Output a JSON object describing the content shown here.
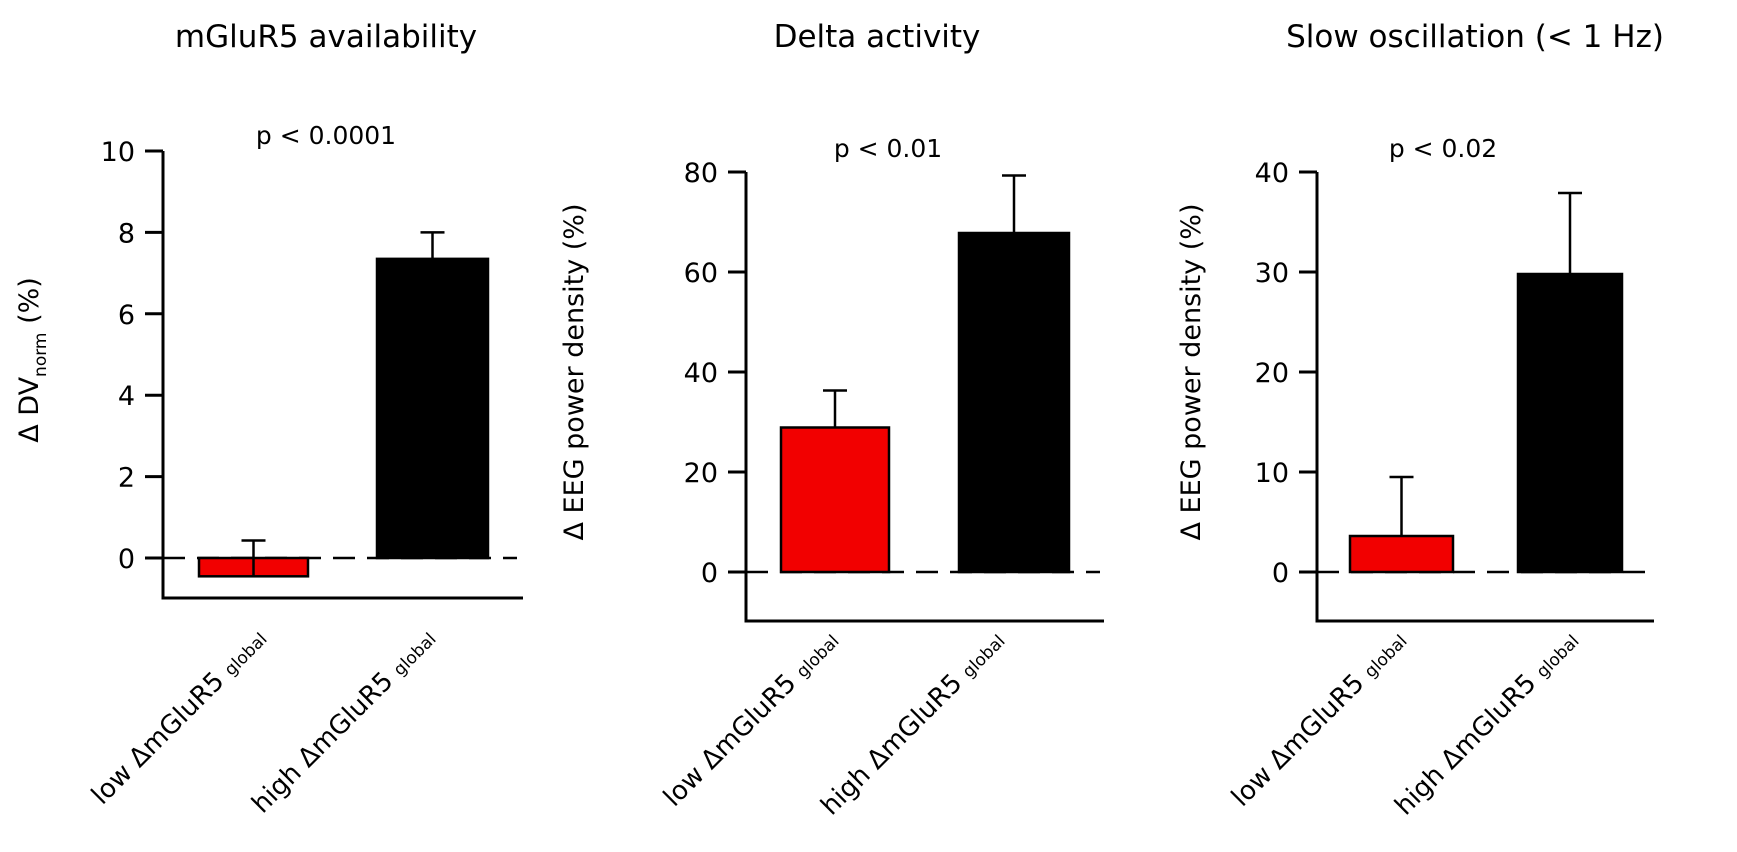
{
  "figure": {
    "colors": {
      "low": "#f20000",
      "high": "#000000",
      "axis": "#000000",
      "zero_line": "#000000"
    }
  },
  "chart_data": [
    {
      "type": "bar",
      "title": "mGluR5 availability",
      "annotation": "p < 0.0001",
      "ylabel": "Δ DV",
      "ylabel_subscript": "norm",
      "ylabel_suffix": " (%)",
      "categories": [
        {
          "prefix": "low ΔmGluR5",
          "subscript": "global"
        },
        {
          "prefix": "high ΔmGluR5",
          "subscript": "global"
        }
      ],
      "values": [
        -0.45,
        7.35
      ],
      "error_upper": [
        0.43,
        8.0
      ],
      "error_direction": [
        "up-through-bar",
        "up"
      ],
      "ylim": [
        -1,
        10
      ],
      "yticks": [
        0,
        2,
        4,
        6,
        8,
        10
      ],
      "ytick_labels": [
        "0",
        "2",
        "4",
        "6",
        "8",
        "10"
      ],
      "zero_line": "dashed",
      "grid": false
    },
    {
      "type": "bar",
      "title": "Delta activity",
      "annotation": "p < 0.01",
      "ylabel": "Δ EEG power density (%)",
      "ylabel_subscript": "",
      "ylabel_suffix": "",
      "categories": [
        {
          "prefix": "low ΔmGluR5",
          "subscript": "global"
        },
        {
          "prefix": "high ΔmGluR5",
          "subscript": "global"
        }
      ],
      "values": [
        28.9,
        67.8
      ],
      "error_upper": [
        36.3,
        79.3
      ],
      "error_direction": [
        "up",
        "up"
      ],
      "ylim": [
        -10,
        80
      ],
      "yticks": [
        0,
        20,
        40,
        60,
        80
      ],
      "ytick_labels": [
        "0",
        "20",
        "40",
        "60",
        "80"
      ],
      "zero_line": "dashed",
      "grid": false
    },
    {
      "type": "bar",
      "title": "Slow oscillation (< 1 Hz)",
      "annotation": "p < 0.02",
      "ylabel": "Δ EEG power density (%)",
      "ylabel_subscript": "",
      "ylabel_suffix": "",
      "categories": [
        {
          "prefix": "low ΔmGluR5",
          "subscript": "global"
        },
        {
          "prefix": "high ΔmGluR5",
          "subscript": "global"
        }
      ],
      "values": [
        3.6,
        29.8
      ],
      "error_upper": [
        9.5,
        37.9
      ],
      "error_direction": [
        "up",
        "up"
      ],
      "ylim": [
        -5,
        40
      ],
      "yticks": [
        0,
        10,
        20,
        30,
        40
      ],
      "ytick_labels": [
        "0",
        "10",
        "20",
        "30",
        "40"
      ],
      "zero_line": "dashed",
      "grid": false
    }
  ]
}
